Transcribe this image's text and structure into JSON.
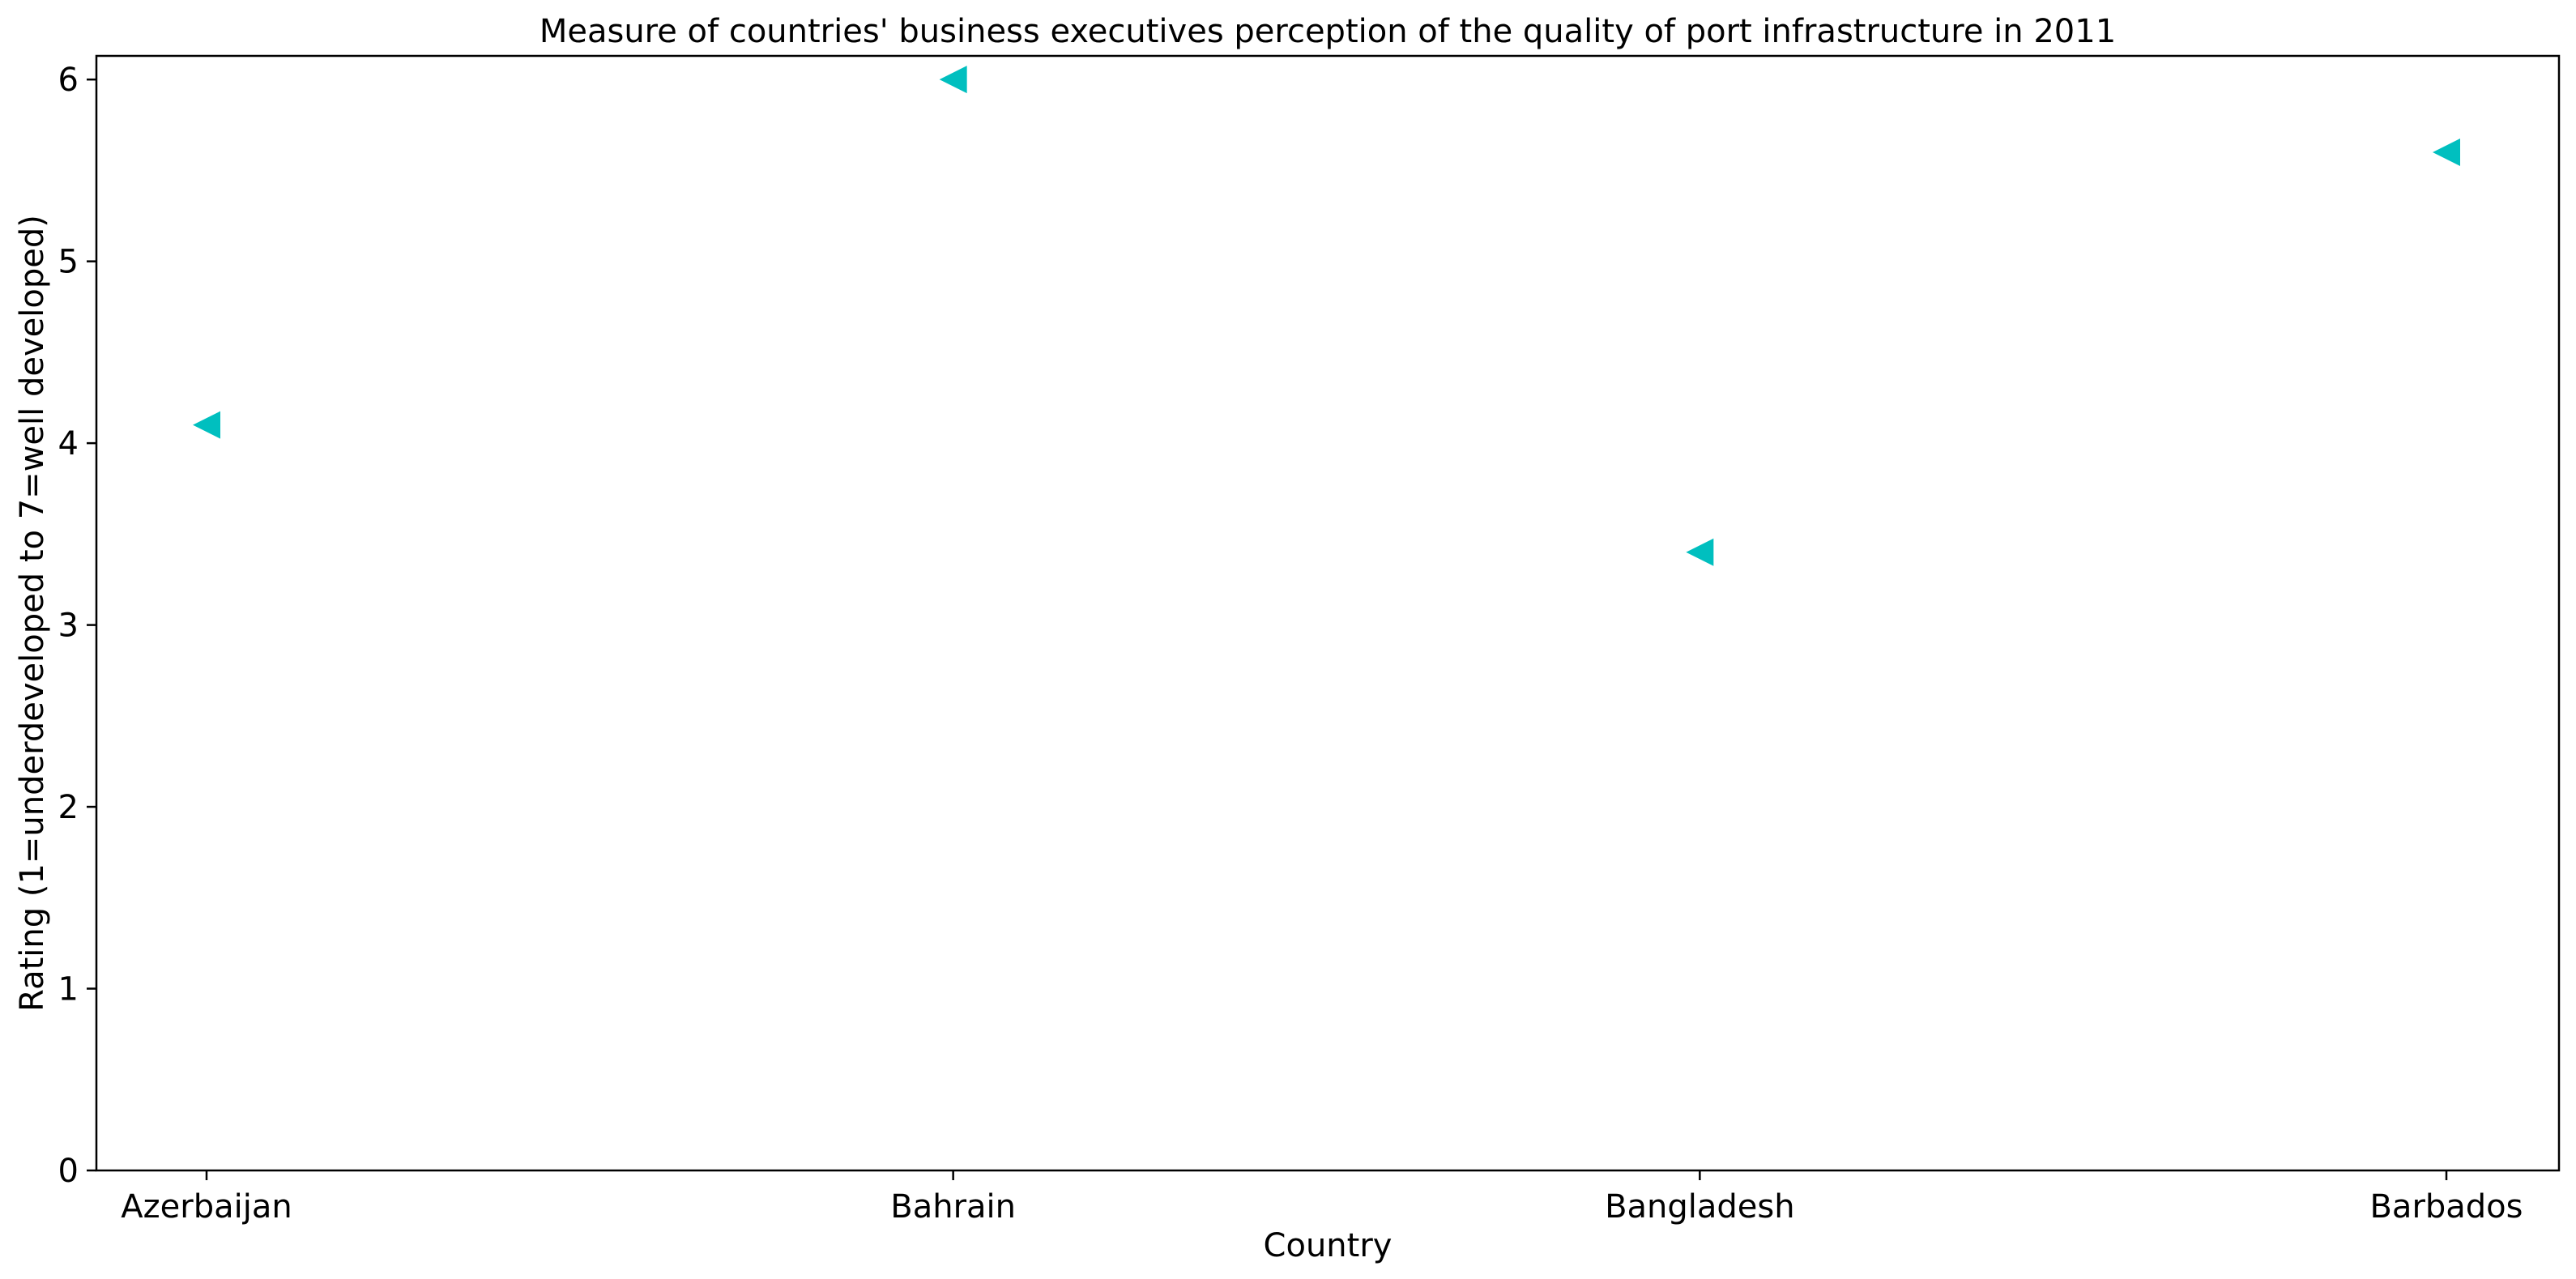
{
  "chart_data": {
    "type": "scatter",
    "title": "Measure of countries' business executives perception of the quality of port infrastructure in 2011",
    "xlabel": "Country",
    "ylabel": "Rating (1=underdeveloped to 7=well developed)",
    "categories": [
      "Azerbaijan",
      "Bahrain",
      "Bangladesh",
      "Barbados"
    ],
    "values": [
      4.1,
      6.0,
      3.4,
      5.6
    ],
    "ylim": [
      0,
      6.13
    ],
    "yticks": [
      "0",
      "1",
      "2",
      "3",
      "4",
      "5",
      "6"
    ],
    "grid": false,
    "marker": "triangle-left",
    "color": "#00BFBF"
  }
}
